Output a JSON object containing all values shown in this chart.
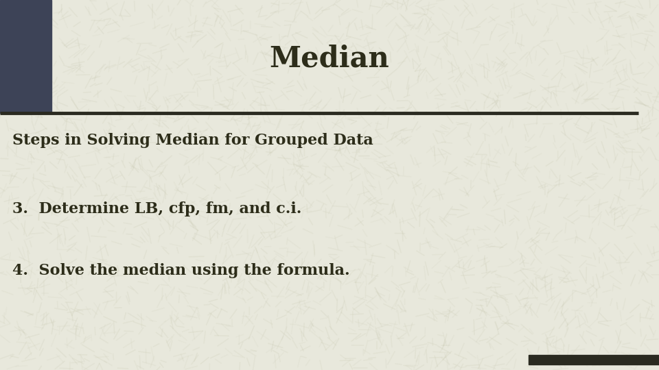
{
  "title": "Median",
  "subtitle": "Steps in Solving Median for Grouped Data",
  "step3": "3.  Determine LB, cfp, fm, and c.i.",
  "step4": "4.  Solve the median using the formula.",
  "bg_color": "#e8e8dc",
  "title_color": "#2d2d1a",
  "text_color": "#2d2d1a",
  "accent_rect_color": "#3d4357",
  "divider_color": "#2a2a20",
  "bottom_bar_color": "#2a2a20",
  "title_fontsize": 30,
  "subtitle_fontsize": 16,
  "body_fontsize": 16
}
